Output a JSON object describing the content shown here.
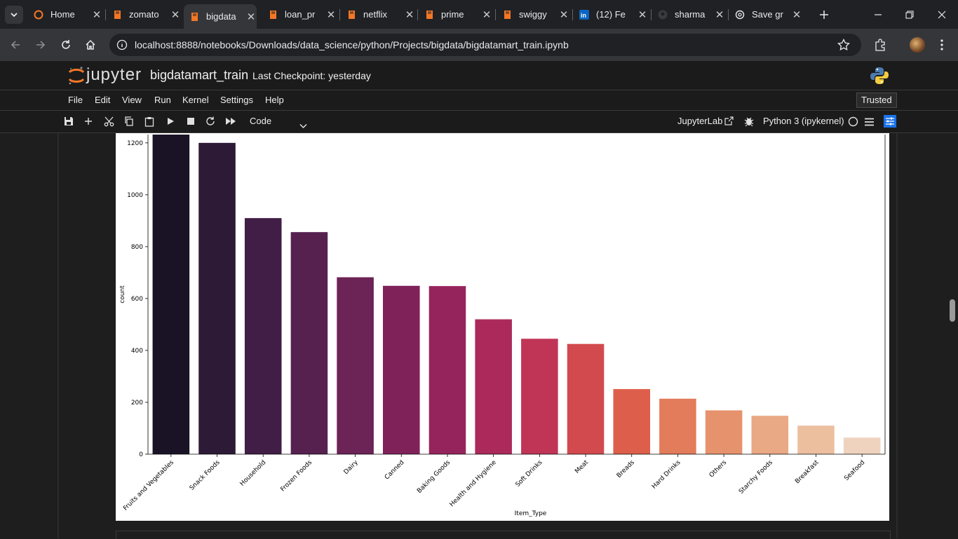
{
  "browser": {
    "tabs": [
      {
        "label": "Home",
        "icon": "jupyter-icon",
        "active": false
      },
      {
        "label": "zomato",
        "icon": "notebook-icon",
        "active": false
      },
      {
        "label": "bigdata",
        "icon": "notebook-icon",
        "active": true
      },
      {
        "label": "loan_pr",
        "icon": "notebook-icon",
        "active": false
      },
      {
        "label": "netflix",
        "icon": "notebook-icon",
        "active": false
      },
      {
        "label": "prime",
        "icon": "notebook-icon",
        "active": false
      },
      {
        "label": "swiggy",
        "icon": "notebook-icon",
        "active": false
      },
      {
        "label": "(12) Fe",
        "icon": "linkedin-icon",
        "active": false
      },
      {
        "label": "sharma",
        "icon": "github-icon",
        "active": false
      },
      {
        "label": "Save gr",
        "icon": "openai-icon",
        "active": false
      }
    ],
    "url": "localhost:8888/notebooks/Downloads/data_science/python/Projects/bigdata/bigdatamart_train.ipynb"
  },
  "jupyter": {
    "logo_text": "jupyter",
    "notebook_title": "bigdatamart_train",
    "checkpoint": "Last Checkpoint: yesterday",
    "menus": [
      "File",
      "Edit",
      "View",
      "Run",
      "Kernel",
      "Settings",
      "Help"
    ],
    "trusted": "Trusted",
    "cell_type": "Code",
    "jupyterlab_label": "JupyterLab",
    "kernel_name": "Python 3 (ipykernel)"
  },
  "chart_data": {
    "type": "bar",
    "categories": [
      "Fruits and Vegetables",
      "Snack Foods",
      "Household",
      "Frozen Foods",
      "Dairy",
      "Canned",
      "Baking Goods",
      "Health and Hygiene",
      "Soft Drinks",
      "Meat",
      "Breads",
      "Hard Drinks",
      "Others",
      "Starchy Foods",
      "Breakfast",
      "Seafood"
    ],
    "values": [
      1232,
      1200,
      910,
      856,
      682,
      649,
      648,
      520,
      445,
      425,
      251,
      214,
      169,
      148,
      110,
      64
    ],
    "colors": [
      "#1a1326",
      "#2d1a37",
      "#411e45",
      "#56214f",
      "#6c2356",
      "#80225a",
      "#96245c",
      "#ab2a5b",
      "#c03556",
      "#d24a4e",
      "#dd5f4b",
      "#e27c5b",
      "#e6936d",
      "#e9a984",
      "#ecbf9f",
      "#efd3bf"
    ],
    "xlabel": "Item_Type",
    "ylabel": "count",
    "ylim": [
      0,
      1232
    ],
    "yticks": [
      0,
      200,
      400,
      600,
      800,
      1000,
      1200
    ]
  }
}
